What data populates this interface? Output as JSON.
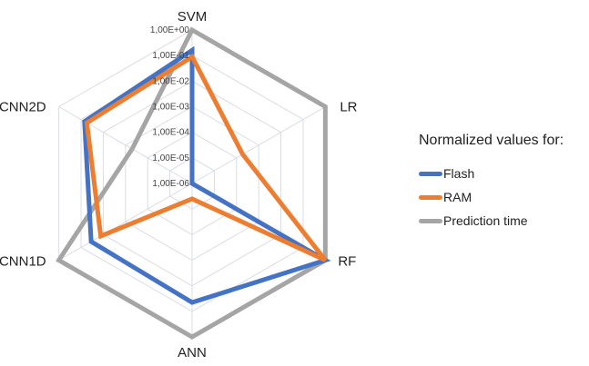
{
  "chart_data": {
    "type": "radar",
    "title": "",
    "scale": "log",
    "axes": [
      "SVM",
      "LR",
      "RF",
      "ANN",
      "CNN1D",
      "CNN2D"
    ],
    "tick_labels": [
      "1,00E-06",
      "1,00E-05",
      "1,00E-04",
      "1,00E-03",
      "1,00E-02",
      "1,00E-01",
      "1,00E+00"
    ],
    "range": [
      1e-06,
      1
    ],
    "grid": true,
    "legend": {
      "title": "Normalized values for:",
      "position": "right"
    },
    "series": [
      {
        "name": "Flash",
        "color": "#4472C4",
        "values": [
          0.16,
          1e-06,
          1.0,
          0.045,
          0.035,
          0.07
        ]
      },
      {
        "name": "RAM",
        "color": "#ED7D31",
        "values": [
          0.09,
          0.00019,
          1.0,
          4e-06,
          0.013,
          0.055
        ]
      },
      {
        "name": "Prediction time",
        "color": "#A5A5A5",
        "values": [
          1.0,
          1.0,
          1.0,
          1.0,
          1.0,
          0.0005
        ]
      }
    ]
  }
}
